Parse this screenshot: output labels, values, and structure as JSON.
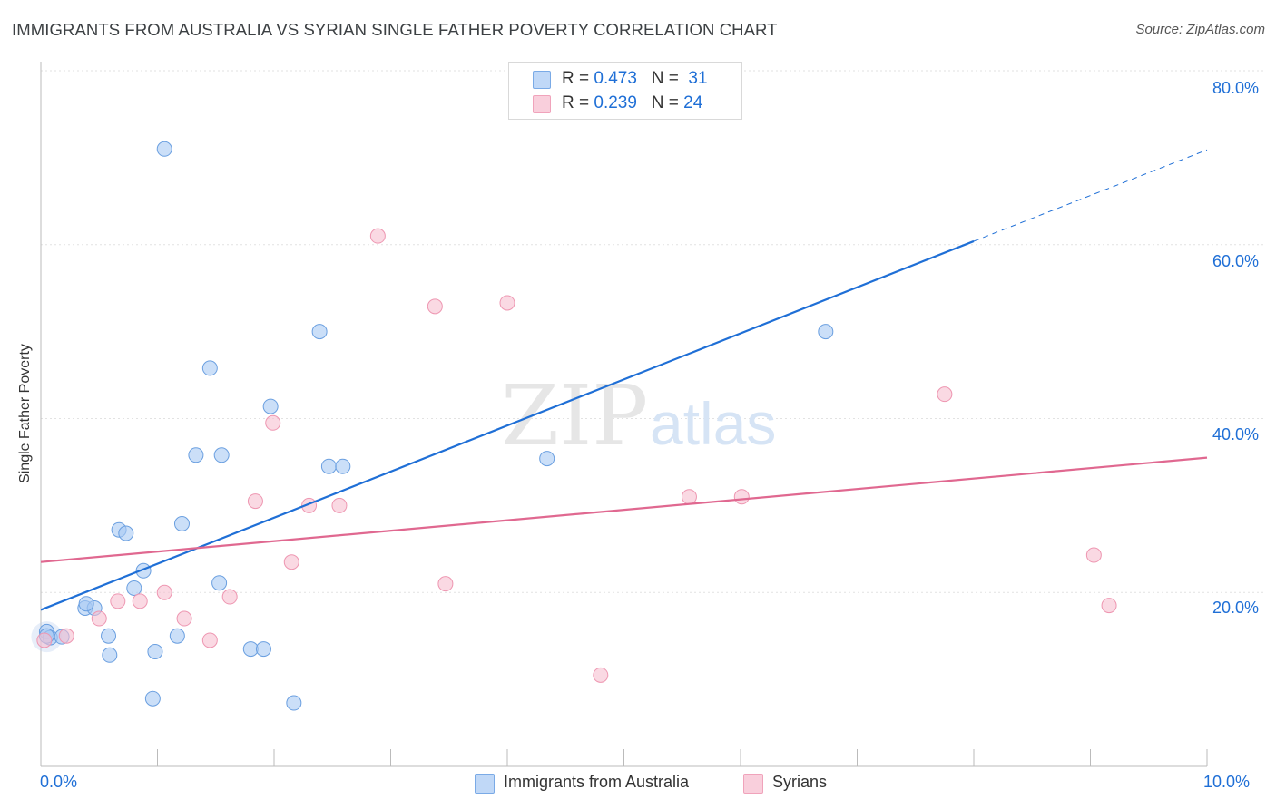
{
  "chart_data": {
    "type": "scatter",
    "title": "IMMIGRANTS FROM AUSTRALIA VS SYRIAN SINGLE FATHER POVERTY CORRELATION CHART",
    "source": "Source: ZipAtlas.com",
    "xlabel": "",
    "ylabel": "Single Father Poverty",
    "xlim": [
      0,
      10
    ],
    "ylim": [
      0,
      80
    ],
    "x_tick_labels": [
      "0.0%",
      "10.0%"
    ],
    "y_ticks": [
      20,
      40,
      60,
      80
    ],
    "y_tick_labels": [
      "20.0%",
      "40.0%",
      "60.0%",
      "80.0%"
    ],
    "watermark": "ZIPatlas",
    "series": [
      {
        "name": "Immigrants from Australia",
        "color": "#a9c9f3",
        "edge_color": "#6a9fe0",
        "line_color": "#1f6fd6",
        "R": "0.473",
        "N": "31",
        "points": [
          [
            0.05,
            15.5
          ],
          [
            0.08,
            14.8
          ],
          [
            0.18,
            14.9
          ],
          [
            0.38,
            18.2
          ],
          [
            0.46,
            18.2
          ],
          [
            0.39,
            18.7
          ],
          [
            0.58,
            15.0
          ],
          [
            0.59,
            12.8
          ],
          [
            0.67,
            27.2
          ],
          [
            0.73,
            26.8
          ],
          [
            0.8,
            20.5
          ],
          [
            0.88,
            22.5
          ],
          [
            0.96,
            7.8
          ],
          [
            0.98,
            13.2
          ],
          [
            1.06,
            71.0
          ],
          [
            1.17,
            15.0
          ],
          [
            1.21,
            27.9
          ],
          [
            1.33,
            35.8
          ],
          [
            1.45,
            45.8
          ],
          [
            1.53,
            21.1
          ],
          [
            1.55,
            35.8
          ],
          [
            1.8,
            13.5
          ],
          [
            1.91,
            13.5
          ],
          [
            1.97,
            41.4
          ],
          [
            2.17,
            7.3
          ],
          [
            2.39,
            50.0
          ],
          [
            2.47,
            34.5
          ],
          [
            2.59,
            34.5
          ],
          [
            4.34,
            35.4
          ],
          [
            6.73,
            50.0
          ],
          [
            0.05,
            15.0
          ]
        ],
        "trend_start": [
          0,
          18.0
        ],
        "trend_solid_end": [
          8.0,
          60.4
        ],
        "trend_dashed_end": [
          10.0,
          70.9
        ]
      },
      {
        "name": "Syrians",
        "color": "#f6bfd0",
        "edge_color": "#ee96b1",
        "line_color": "#e06890",
        "R": "0.239",
        "N": "24",
        "points": [
          [
            0.03,
            14.5
          ],
          [
            0.22,
            15.0
          ],
          [
            0.5,
            17.0
          ],
          [
            0.66,
            19.0
          ],
          [
            0.85,
            19.0
          ],
          [
            1.06,
            20.0
          ],
          [
            1.23,
            17.0
          ],
          [
            1.45,
            14.5
          ],
          [
            1.62,
            19.5
          ],
          [
            1.84,
            30.5
          ],
          [
            1.99,
            39.5
          ],
          [
            2.15,
            23.5
          ],
          [
            2.3,
            30.0
          ],
          [
            2.56,
            30.0
          ],
          [
            2.89,
            61.0
          ],
          [
            3.38,
            52.9
          ],
          [
            3.47,
            21.0
          ],
          [
            4.0,
            53.3
          ],
          [
            4.8,
            10.5
          ],
          [
            5.56,
            31.0
          ],
          [
            6.01,
            31.0
          ],
          [
            7.75,
            42.8
          ],
          [
            9.03,
            24.3
          ],
          [
            9.16,
            18.5
          ]
        ],
        "trend_start": [
          0,
          23.5
        ],
        "trend_end": [
          10.0,
          35.5
        ]
      }
    ]
  }
}
